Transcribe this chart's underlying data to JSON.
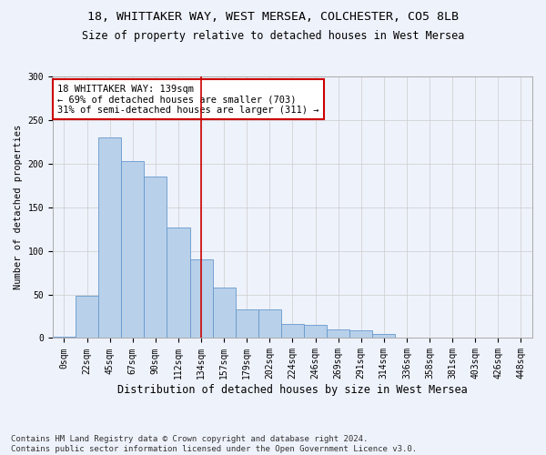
{
  "title_line1": "18, WHITTAKER WAY, WEST MERSEA, COLCHESTER, CO5 8LB",
  "title_line2": "Size of property relative to detached houses in West Mersea",
  "xlabel": "Distribution of detached houses by size in West Mersea",
  "ylabel": "Number of detached properties",
  "footnote": "Contains HM Land Registry data © Crown copyright and database right 2024.\nContains public sector information licensed under the Open Government Licence v3.0.",
  "bar_labels": [
    "0sqm",
    "22sqm",
    "45sqm",
    "67sqm",
    "90sqm",
    "112sqm",
    "134sqm",
    "157sqm",
    "179sqm",
    "202sqm",
    "224sqm",
    "246sqm",
    "269sqm",
    "291sqm",
    "314sqm",
    "336sqm",
    "358sqm",
    "381sqm",
    "403sqm",
    "426sqm",
    "448sqm"
  ],
  "bar_values": [
    2,
    48,
    230,
    203,
    185,
    127,
    90,
    58,
    33,
    33,
    16,
    15,
    10,
    9,
    5,
    1,
    1,
    0,
    1,
    0,
    1
  ],
  "bar_color": "#b8d0ea",
  "bar_edge_color": "#6699cc",
  "vline_x": 6.0,
  "vline_color": "#cc0000",
  "annotation_text": "18 WHITTAKER WAY: 139sqm\n← 69% of detached houses are smaller (703)\n31% of semi-detached houses are larger (311) →",
  "annotation_box_color": "#ffffff",
  "annotation_box_edge_color": "#cc0000",
  "ylim": [
    0,
    300
  ],
  "yticks": [
    0,
    50,
    100,
    150,
    200,
    250,
    300
  ],
  "background_color": "#eef2fb",
  "fig_background": "#eef2fb",
  "grid_color": "#cccccc",
  "title1_fontsize": 9.5,
  "title2_fontsize": 8.5,
  "xlabel_fontsize": 8.5,
  "ylabel_fontsize": 7.5,
  "tick_fontsize": 7,
  "annot_fontsize": 7.5,
  "footnote_fontsize": 6.5
}
